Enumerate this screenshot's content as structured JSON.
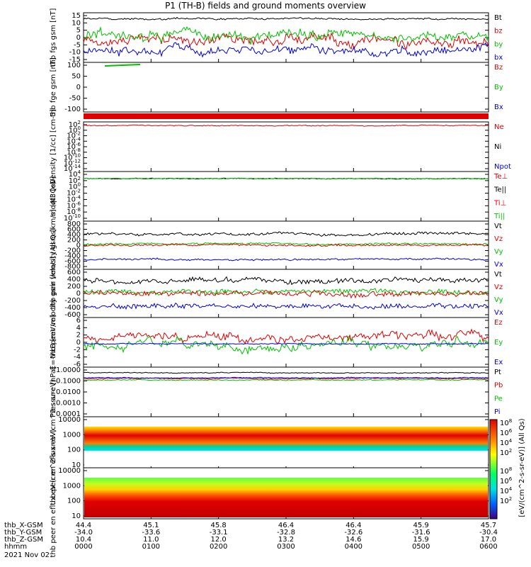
{
  "title": "P1 (TH-B) fields and ground moments overview",
  "date": "2021 Nov 02",
  "colors": {
    "black": "#000000",
    "red": "#e00000",
    "green": "#00c000",
    "blue": "#0000e0"
  },
  "footer": {
    "rows": [
      {
        "label": "thb_X-GSM",
        "values": [
          "44.4",
          "45.1",
          "45.8",
          "46.4",
          "46.4",
          "45.9",
          "45.7"
        ]
      },
      {
        "label": "thb_Y-GSM",
        "values": [
          "-34.0",
          "-33.6",
          "-33.1",
          "-32.8",
          "-32.6",
          "-31.6",
          "-30.4"
        ]
      },
      {
        "label": "thb_Z-GSM",
        "values": [
          "10.4",
          "11.0",
          "12.0",
          "13.2",
          "14.6",
          "15.9",
          "17.0"
        ]
      },
      {
        "label": "hhmm",
        "values": [
          "0000",
          "0100",
          "0200",
          "0300",
          "0400",
          "0500",
          "0600"
        ]
      }
    ]
  },
  "colorbar": {
    "label": "[eV/(cm^2-s-sr-eV)] (All Qs)",
    "ticks_top": [
      "10^8",
      "10^6",
      "10^4",
      "10^2"
    ],
    "ticks_bottom": [
      "10^8",
      "10^6",
      "10^4",
      "10^2"
    ]
  },
  "chart_data": [
    {
      "type": "line",
      "ylabel": "thb fgs gsm [nT]",
      "yticks": [
        "15",
        "10",
        "5",
        "0",
        "-5",
        "-10",
        "-15"
      ],
      "ylim": [
        -15,
        15
      ],
      "series": [
        {
          "name": "Bt",
          "color": "black"
        },
        {
          "name": "bz",
          "color": "red"
        },
        {
          "name": "by",
          "color": "green"
        },
        {
          "name": "bx",
          "color": "blue"
        }
      ]
    },
    {
      "type": "line",
      "ylabel": "thb fge gsm [nT]",
      "yticks": [
        "100",
        "50",
        "0",
        "-50",
        "-100"
      ],
      "ylim": [
        -130,
        100
      ],
      "series": [
        {
          "name": "Bz",
          "color": "red"
        },
        {
          "name": "By",
          "color": "green"
        },
        {
          "name": "Bx",
          "color": "blue"
        }
      ]
    },
    {
      "type": "line",
      "ylabel": "Density [1/cc] [cm-3]",
      "yticks": [
        "10^2",
        "10^0",
        "10^-2",
        "10^-4",
        "10^-6",
        "10^-8",
        "10^-10",
        "10^-12",
        "10^-14"
      ],
      "ylim": [
        -14,
        2
      ],
      "log": true,
      "series": [
        {
          "name": "Ne",
          "color": "red"
        },
        {
          "name": "Ni",
          "color": "black"
        },
        {
          "name": "Npot",
          "color": "blue"
        }
      ]
    },
    {
      "type": "line",
      "ylabel": "moqt3 [eV]",
      "yticks": [
        "10^4",
        "10^2",
        "10^0",
        "10^-2",
        "10^-4",
        "10^-6",
        "10^-8",
        "10^-10"
      ],
      "ylim": [
        -10,
        4
      ],
      "log": true,
      "series": [
        {
          "name": "Te⊥",
          "color": "red"
        },
        {
          "name": "Te||",
          "color": "black"
        },
        {
          "name": "Ti⊥",
          "color": "red"
        },
        {
          "name": "Ti||",
          "color": "green"
        }
      ]
    },
    {
      "type": "line",
      "ylabel": "thb peir velocity gsm [km/s] (All Qs)",
      "yticks": [
        "800",
        "600",
        "400",
        "200",
        "0",
        "-200",
        "-400",
        "-600",
        "-800"
      ],
      "ylim": [
        -800,
        800
      ],
      "series": [
        {
          "name": "Vt",
          "color": "black"
        },
        {
          "name": "Vz",
          "color": "red"
        },
        {
          "name": "Vy",
          "color": "green"
        },
        {
          "name": "Vx",
          "color": "blue"
        }
      ]
    },
    {
      "type": "line",
      "ylabel": "thb peer velocity gsm [km/s] (All Qs)",
      "yticks": [
        "600",
        "400",
        "200",
        "0",
        "-200",
        "-400",
        "-600"
      ],
      "ylim": [
        -600,
        600
      ],
      "series": [
        {
          "name": "Vt",
          "color": "black"
        },
        {
          "name": "Vz",
          "color": "red"
        },
        {
          "name": "Vy",
          "color": "green"
        },
        {
          "name": "Vx",
          "color": "blue"
        }
      ]
    },
    {
      "type": "line",
      "ylabel": "E=-VxB [mV/m]",
      "yticks": [
        "6",
        "4",
        "2",
        "0",
        "-2",
        "-4",
        "-6"
      ],
      "ylim": [
        -6,
        6
      ],
      "series": [
        {
          "name": "Ez",
          "color": "red"
        },
        {
          "name": "Ey",
          "color": "green"
        },
        {
          "name": "Ex",
          "color": "blue"
        }
      ]
    },
    {
      "type": "line",
      "ylabel": "Pressure [nPa]",
      "yticks": [
        "1.0000",
        "0.1000",
        "0.0100",
        "0.0010",
        "0.0001"
      ],
      "ylim": [
        -4,
        0
      ],
      "log": true,
      "series": [
        {
          "name": "Pt",
          "color": "black"
        },
        {
          "name": "Pb",
          "color": "red"
        },
        {
          "name": "Pe",
          "color": "green"
        },
        {
          "name": "Pi",
          "color": "blue"
        }
      ]
    },
    {
      "type": "heatmap",
      "ylabel": "thb peir en eflux eV (cm^2-s-sr-eV)",
      "yticks": [
        "10000",
        "1000",
        "100",
        "10"
      ]
    },
    {
      "type": "heatmap",
      "ylabel": "thb peer en eflux eV (cm^2-s-sr-eV)",
      "yticks": [
        "10000",
        "1000",
        "100",
        "10"
      ]
    }
  ]
}
